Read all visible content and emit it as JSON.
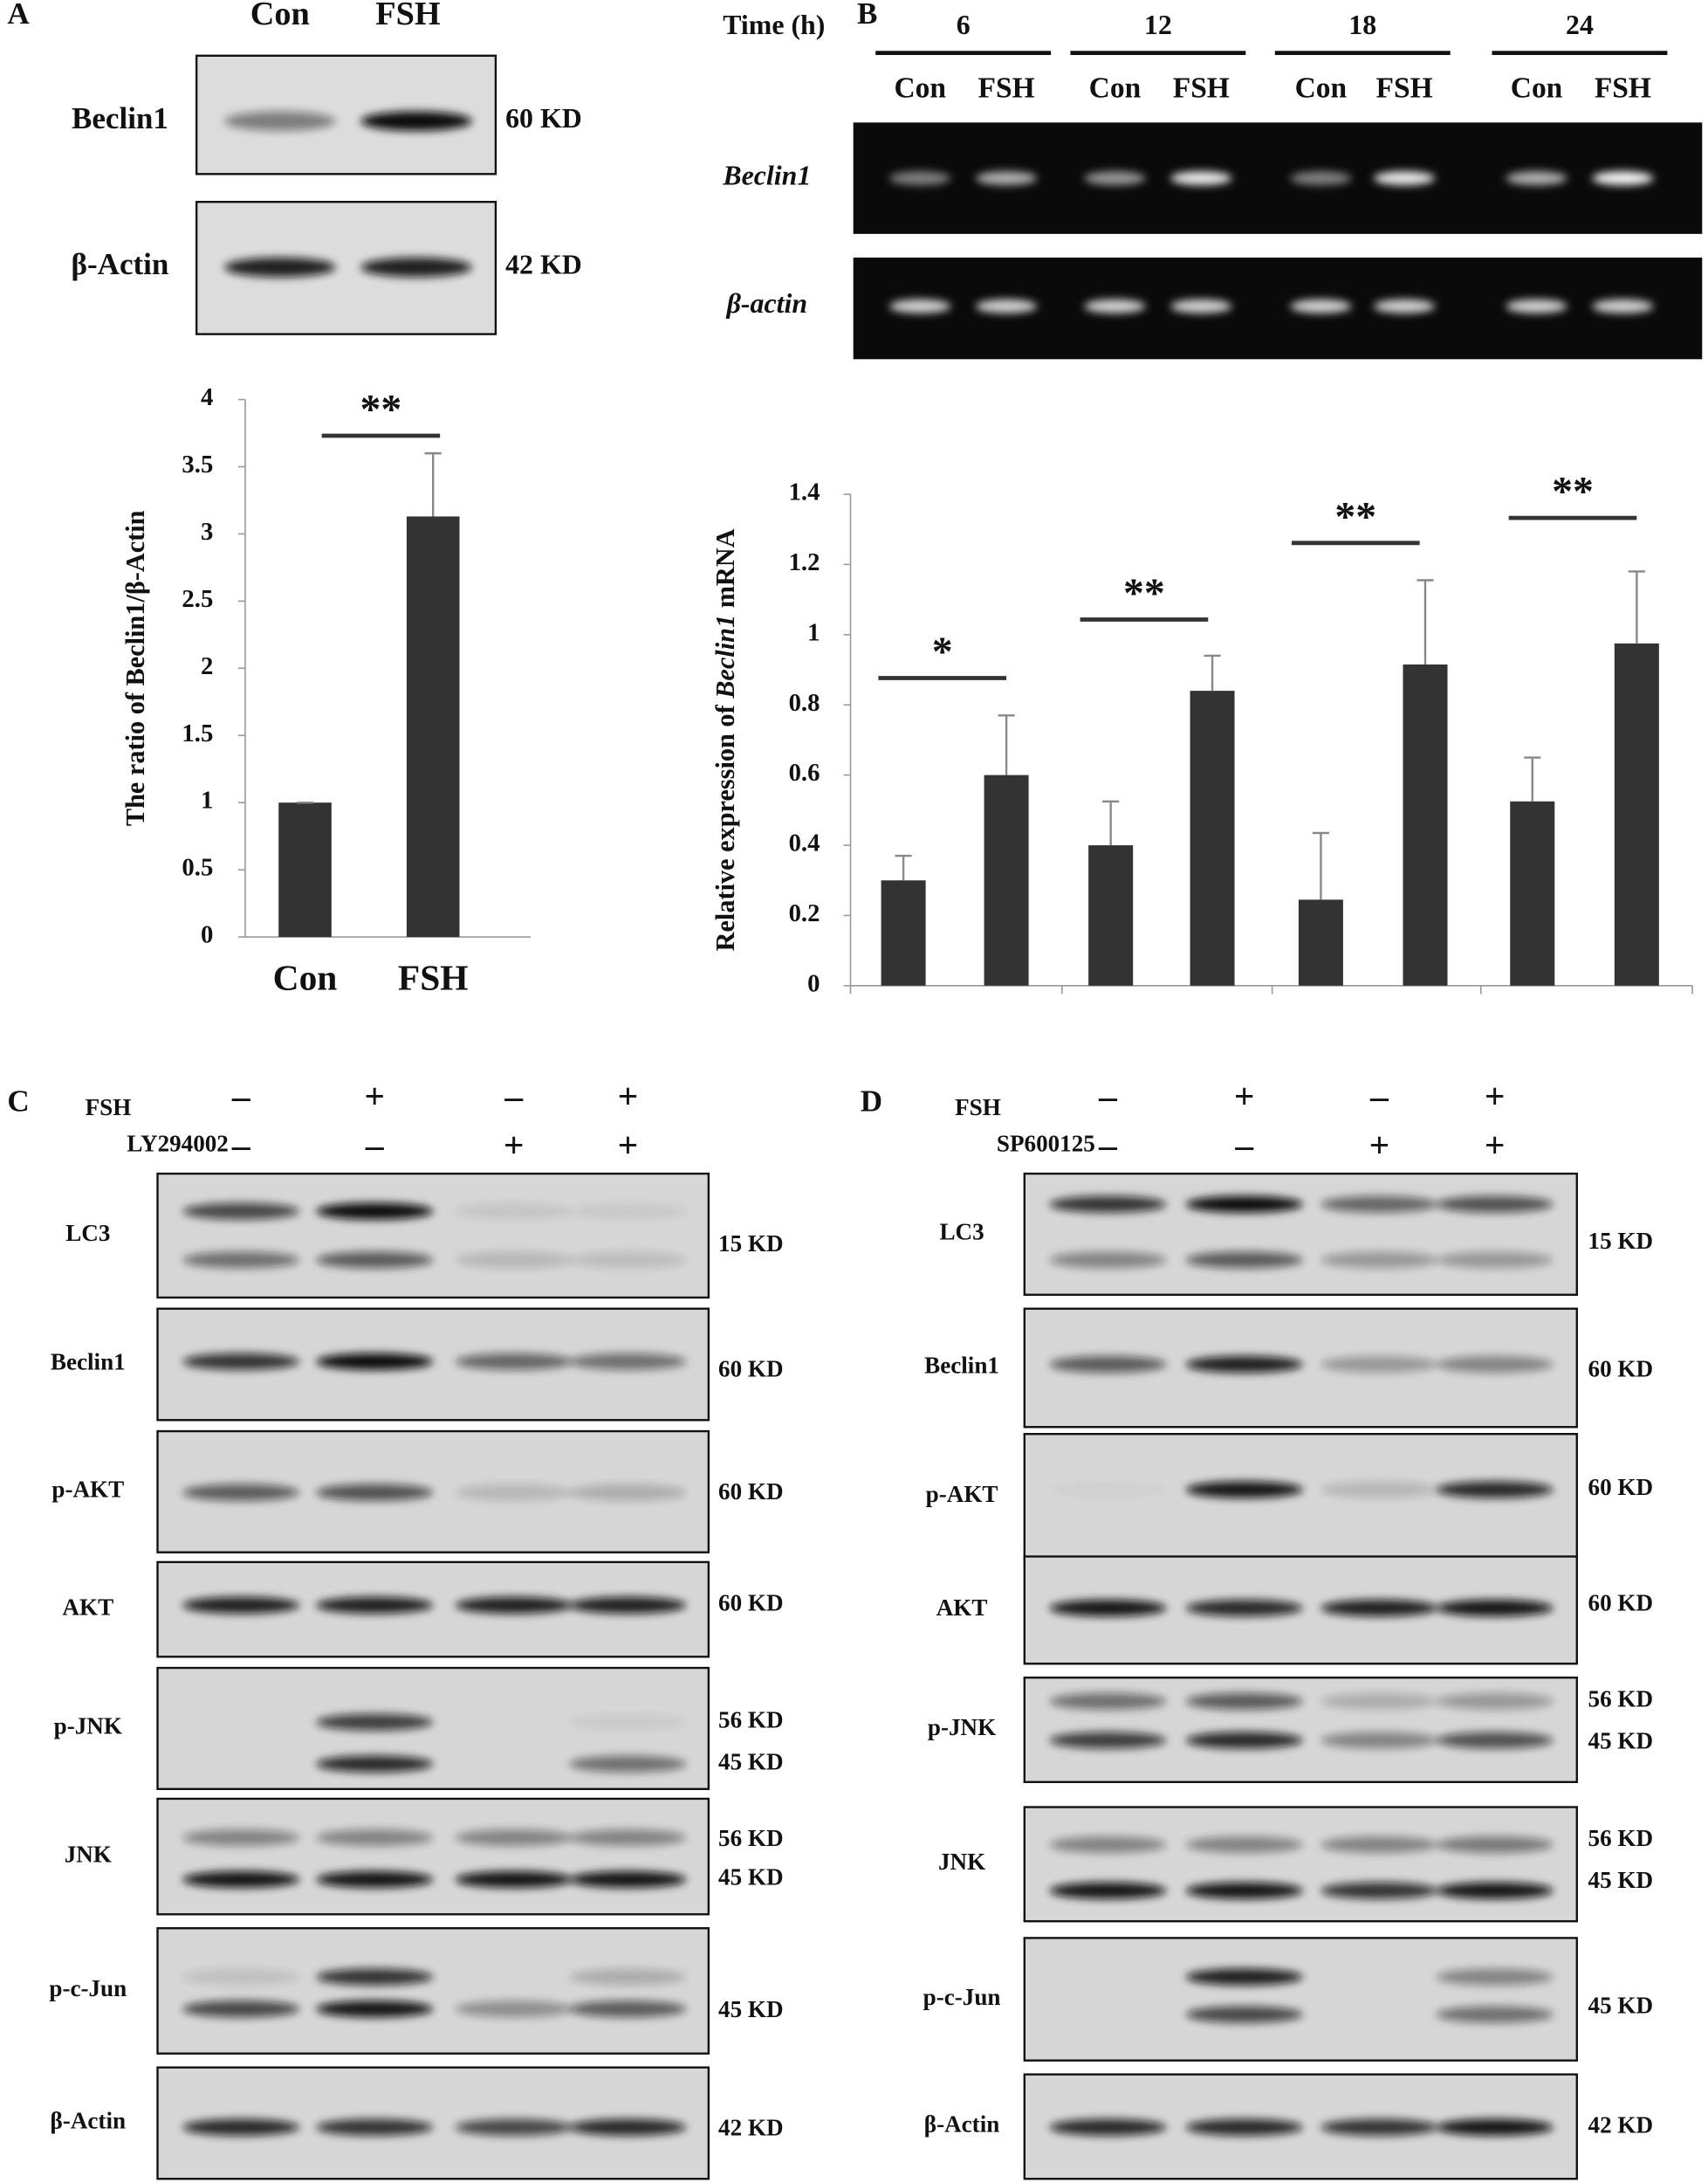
{
  "panel_a": {
    "label": "A",
    "lanes": [
      "Con",
      "FSH"
    ],
    "blots": [
      {
        "name": "Beclin1",
        "sizes": [
          "60 KD"
        ]
      },
      {
        "name": "β-Actin",
        "sizes": [
          "42 KD"
        ]
      }
    ]
  },
  "panel_b": {
    "label": "B",
    "time_label": "Time (h)",
    "times": [
      "6",
      "12",
      "18",
      "24"
    ],
    "lanes": [
      "Con",
      "FSH"
    ],
    "gels": [
      "Beclin1",
      "β-actin"
    ]
  },
  "panel_c": {
    "label": "C",
    "treatments": [
      {
        "name": "FSH",
        "signs": [
          "–",
          "+",
          "–",
          "+"
        ]
      },
      {
        "name": "LY294002",
        "signs": [
          "–",
          "–",
          "+",
          "+"
        ]
      }
    ],
    "blots": [
      {
        "name": "LC3",
        "sizes": [
          "15 KD"
        ]
      },
      {
        "name": "Beclin1",
        "sizes": [
          "60 KD"
        ]
      },
      {
        "name": "p-AKT",
        "sizes": [
          "60 KD"
        ]
      },
      {
        "name": "AKT",
        "sizes": [
          "60 KD"
        ]
      },
      {
        "name": "p-JNK",
        "sizes": [
          "56 KD",
          "45 KD"
        ]
      },
      {
        "name": "JNK",
        "sizes": [
          "56 KD",
          "45 KD"
        ]
      },
      {
        "name": "p-c-Jun",
        "sizes": [
          "45 KD"
        ]
      },
      {
        "name": "β-Actin",
        "sizes": [
          "42 KD"
        ]
      }
    ]
  },
  "panel_d": {
    "label": "D",
    "treatments": [
      {
        "name": "FSH",
        "signs": [
          "–",
          "+",
          "–",
          "+"
        ]
      },
      {
        "name": "SP600125",
        "signs": [
          "–",
          "–",
          "+",
          "+"
        ]
      }
    ],
    "blots": [
      {
        "name": "LC3",
        "sizes": [
          "15 KD"
        ]
      },
      {
        "name": "Beclin1",
        "sizes": [
          "60 KD"
        ]
      },
      {
        "name": "p-AKT",
        "sizes": [
          "60 KD"
        ]
      },
      {
        "name": "AKT",
        "sizes": [
          "60 KD"
        ]
      },
      {
        "name": "p-JNK",
        "sizes": [
          "56 KD",
          "45 KD"
        ]
      },
      {
        "name": "JNK",
        "sizes": [
          "56 KD",
          "45 KD"
        ]
      },
      {
        "name": "p-c-Jun",
        "sizes": [
          "45 KD"
        ]
      },
      {
        "name": "β-Actin",
        "sizes": [
          "42 KD"
        ]
      }
    ]
  },
  "chart_data": [
    {
      "type": "bar",
      "y_label": "The ratio of Beclin1/β-Actin",
      "categories": [
        "Con",
        "FSH"
      ],
      "values": [
        1,
        3.13
      ],
      "errors": [
        0,
        0.47
      ],
      "color": "#333333",
      "ylim": [
        0,
        4
      ],
      "yticks": [
        0,
        0.5,
        1,
        1.5,
        2,
        2.5,
        3,
        3.5,
        4
      ],
      "annotations": [
        "**"
      ]
    },
    {
      "type": "bar",
      "y_label": [
        "Relative expression of ",
        "Beclin1",
        " mRNA"
      ],
      "categories": [
        null,
        null,
        null,
        null
      ],
      "series": [
        {
          "color": "#333333",
          "values": [
            0.3,
            0.4,
            0.245,
            0.525
          ],
          "errors": [
            0.07,
            0.125,
            0.19,
            0.125
          ]
        },
        {
          "color": "#333333",
          "values": [
            0.6,
            0.84,
            0.915,
            0.975
          ],
          "errors": [
            0.17,
            0.1,
            0.24,
            0.205
          ]
        }
      ],
      "ylim": [
        0,
        1.4
      ],
      "yticks": [
        0,
        0.2,
        0.4,
        0.6,
        0.8,
        1,
        1.2,
        1.4
      ],
      "annotations": [
        "*",
        "**",
        "**",
        "**"
      ]
    }
  ]
}
